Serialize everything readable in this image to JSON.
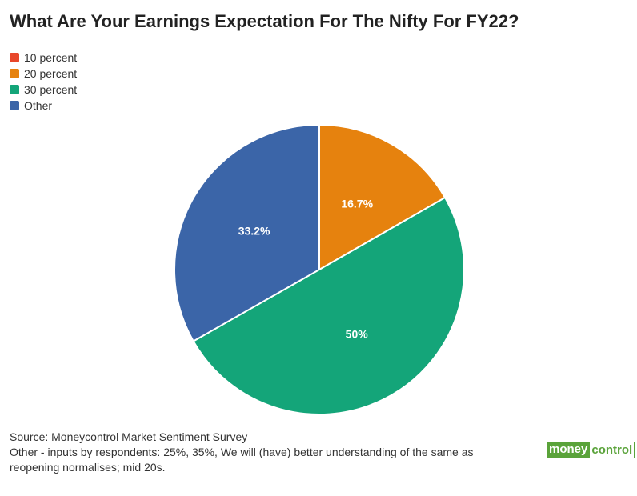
{
  "chart_data": {
    "type": "pie",
    "title": "What Are Your Earnings Expectation For The Nifty For FY22?",
    "series": [
      {
        "name": "10 percent",
        "color": "#e8472b",
        "values": [
          0
        ]
      },
      {
        "name": "20 percent",
        "color": "#e6820e",
        "values": [
          16.7
        ],
        "value_labels": [
          "16.7%"
        ]
      },
      {
        "name": "30 percent",
        "color": "#14a579",
        "values": [
          50
        ],
        "value_labels": [
          "50%"
        ]
      },
      {
        "name": "Other",
        "color": "#3b65a8",
        "values": [
          33.2
        ],
        "value_labels": [
          "33.2%"
        ]
      }
    ],
    "source": "Source: Moneycontrol Market Sentiment Survey",
    "note": "Other - inputs by respondents: 25%, 35%, We will (have) better understanding of the same as reopening normalises; mid 20s.",
    "logo": [
      "money",
      "control"
    ]
  }
}
